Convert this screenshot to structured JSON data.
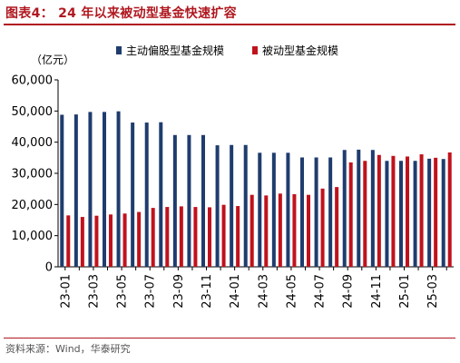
{
  "header": {
    "title": "图表4：  24 年以来被动型基金快速扩容"
  },
  "footer": {
    "source": "资料来源：Wind，华泰研究"
  },
  "colors": {
    "accent": "#b01820",
    "active": "#1f3c6e",
    "passive": "#c0121c"
  },
  "chart_data": {
    "type": "bar",
    "unit_label": "（亿元）",
    "categories": [
      "23-01",
      "23-02",
      "23-03",
      "23-04",
      "23-05",
      "23-06",
      "23-07",
      "23-08",
      "23-09",
      "23-10",
      "23-11",
      "23-12",
      "24-01",
      "24-02",
      "24-03",
      "24-04",
      "24-05",
      "24-06",
      "24-07",
      "24-08",
      "24-09",
      "24-10",
      "24-11",
      "24-12",
      "25-01",
      "25-02",
      "25-03",
      "25-04"
    ],
    "x_tick_labels": [
      "23-01",
      "23-03",
      "23-05",
      "23-07",
      "23-09",
      "23-11",
      "24-01",
      "24-03",
      "24-05",
      "24-07",
      "24-09",
      "24-11",
      "25-01",
      "25-03"
    ],
    "series": [
      {
        "name": "主动偏股型基金规模",
        "color": "#1f3c6e",
        "values": [
          48800,
          48900,
          49700,
          49700,
          49900,
          46300,
          46300,
          46400,
          42300,
          42300,
          42300,
          39000,
          39100,
          39100,
          36600,
          36600,
          36600,
          35100,
          35100,
          35100,
          37500,
          37600,
          37500,
          34000,
          34000,
          34000,
          34700,
          34600
        ]
      },
      {
        "name": "被动型基金规模",
        "color": "#c0121c",
        "values": [
          16500,
          16000,
          16400,
          16800,
          17100,
          17600,
          18900,
          19200,
          19400,
          19200,
          19100,
          19900,
          19500,
          23100,
          22900,
          23500,
          23300,
          23100,
          25100,
          25600,
          33500,
          34000,
          35900,
          35600,
          35400,
          36100,
          35000,
          36700
        ]
      }
    ],
    "yticks": [
      0,
      10000,
      20000,
      30000,
      40000,
      50000,
      60000
    ],
    "ytick_labels": [
      "0",
      "10,000",
      "20,000",
      "30,000",
      "40,000",
      "50,000",
      "60,000"
    ],
    "ylim": [
      0,
      60000
    ],
    "grid": false,
    "legend_position": "top-center"
  }
}
